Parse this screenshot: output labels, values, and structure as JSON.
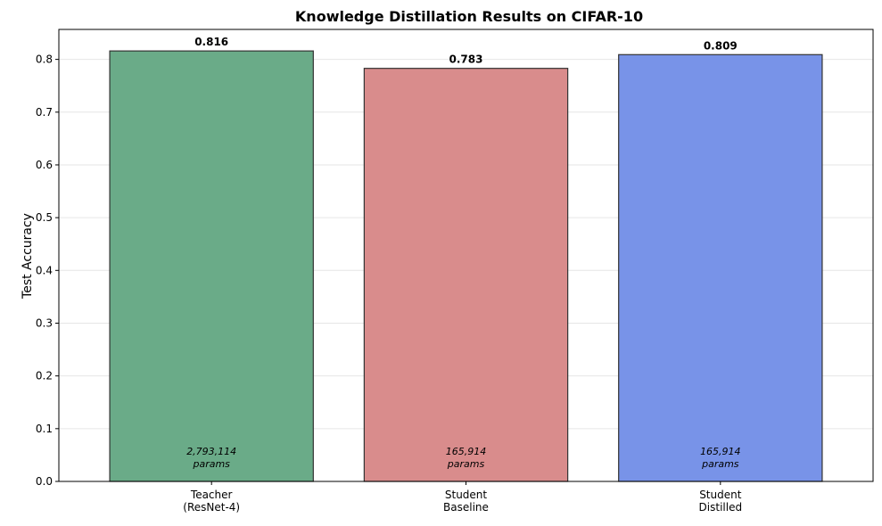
{
  "chart_data": {
    "type": "bar",
    "title": "Knowledge Distillation Results on CIFAR-10",
    "xlabel": "",
    "ylabel": "Test Accuracy",
    "ylim": [
      0,
      0.8568
    ],
    "yticks": [
      0.0,
      0.1,
      0.2,
      0.3,
      0.4,
      0.5,
      0.6,
      0.7,
      0.8
    ],
    "grid": "y",
    "categories": [
      [
        "Teacher",
        "(ResNet-4)"
      ],
      [
        "Student",
        "Baseline"
      ],
      [
        "Student",
        "Distilled"
      ]
    ],
    "values": [
      0.816,
      0.783,
      0.809
    ],
    "value_labels": [
      "0.816",
      "0.783",
      "0.809"
    ],
    "annotations": [
      [
        "2,793,114",
        "params"
      ],
      [
        "165,914",
        "params"
      ],
      [
        "165,914",
        "params"
      ]
    ],
    "colors": [
      "#6aab88",
      "#d98c8c",
      "#7893e8"
    ],
    "edge_color": "#333333"
  }
}
